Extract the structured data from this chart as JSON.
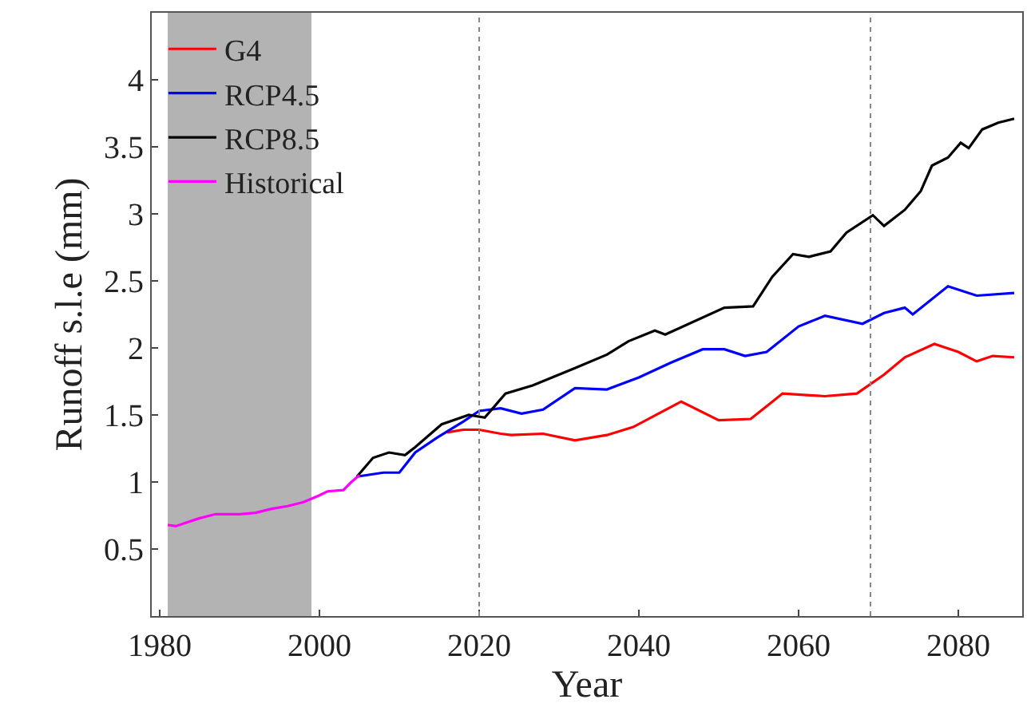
{
  "chart_data": {
    "type": "line",
    "xlabel": "Year",
    "ylabel": "Runoff s.l.e (mm)",
    "xlim": [
      1979,
      2088
    ],
    "xticks": [
      1980,
      2000,
      2020,
      2040,
      2060,
      2080
    ],
    "ylim": [
      0,
      4.5
    ],
    "yticks": [
      0.5,
      1,
      1.5,
      2,
      2.5,
      3,
      3.5,
      4
    ],
    "grid": false,
    "legend": "top left",
    "line_style": "solid",
    "marker": "none",
    "ref_lines": [
      {
        "axis": "x",
        "value": 2020,
        "label": null,
        "color": "#888888",
        "line_style": "dotted"
      },
      {
        "axis": "x",
        "value": 2069,
        "label": null,
        "color": "#888888",
        "line_style": "dotted"
      }
    ],
    "bands": [
      {
        "axis": "x",
        "from": 1981,
        "to": 1999,
        "label": null,
        "color": "#a0a0a0"
      }
    ],
    "series": [
      {
        "name": "G4",
        "color": "#ff0000",
        "x": [
          2016,
          2018,
          2020,
          2022.7,
          2024,
          2028,
          2032,
          2036,
          2039.3,
          2045.3,
          2050,
          2054,
          2058,
          2063.3,
          2067.3,
          2070.7,
          2073.3,
          2077,
          2080,
          2082.3,
          2084.3,
          2087
        ],
        "values": [
          1.37,
          1.39,
          1.39,
          1.36,
          1.35,
          1.36,
          1.31,
          1.35,
          1.41,
          1.6,
          1.46,
          1.47,
          1.66,
          1.64,
          1.66,
          1.8,
          1.93,
          2.03,
          1.97,
          1.9,
          1.94,
          1.93
        ]
      },
      {
        "name": "RCP4.5",
        "color": "#0000ff",
        "x": [
          2004.7,
          2008,
          2010,
          2012,
          2014.7,
          2018,
          2020,
          2022.7,
          2025.3,
          2028,
          2032,
          2036,
          2040,
          2044,
          2048,
          2050.7,
          2053.3,
          2056,
          2060,
          2063.3,
          2068,
          2070.7,
          2073.3,
          2074.3,
          2078.7,
          2082.3,
          2087
        ],
        "values": [
          1.04,
          1.07,
          1.07,
          1.22,
          1.33,
          1.45,
          1.53,
          1.55,
          1.51,
          1.54,
          1.7,
          1.69,
          1.78,
          1.89,
          1.99,
          1.99,
          1.94,
          1.97,
          2.16,
          2.24,
          2.18,
          2.26,
          2.3,
          2.25,
          2.46,
          2.39,
          2.41
        ]
      },
      {
        "name": "RCP8.5",
        "color": "#000000",
        "x": [
          2004.7,
          2006.7,
          2008.7,
          2010.7,
          2012,
          2015.3,
          2018.7,
          2020.7,
          2023.3,
          2026.7,
          2032,
          2036,
          2038.7,
          2042,
          2043.3,
          2050.7,
          2054.3,
          2056.7,
          2059.3,
          2061.3,
          2064,
          2066,
          2069.3,
          2070.7,
          2073.3,
          2075.3,
          2076.7,
          2078.7,
          2080.3,
          2081.3,
          2083,
          2085,
          2087
        ],
        "values": [
          1.04,
          1.18,
          1.22,
          1.2,
          1.26,
          1.43,
          1.5,
          1.48,
          1.66,
          1.72,
          1.85,
          1.95,
          2.05,
          2.13,
          2.1,
          2.3,
          2.31,
          2.53,
          2.7,
          2.68,
          2.72,
          2.86,
          2.99,
          2.91,
          3.03,
          3.17,
          3.36,
          3.42,
          3.53,
          3.49,
          3.63,
          3.68,
          3.71
        ]
      },
      {
        "name": "Historical",
        "color": "#ff00ff",
        "x": [
          1981,
          1982,
          1983,
          1985,
          1987,
          1990,
          1992,
          1994,
          1996,
          1998,
          2000,
          2001,
          2003,
          2004,
          2005
        ],
        "values": [
          0.68,
          0.67,
          0.69,
          0.73,
          0.76,
          0.76,
          0.77,
          0.8,
          0.82,
          0.85,
          0.9,
          0.93,
          0.94,
          1.0,
          1.05
        ]
      }
    ]
  }
}
